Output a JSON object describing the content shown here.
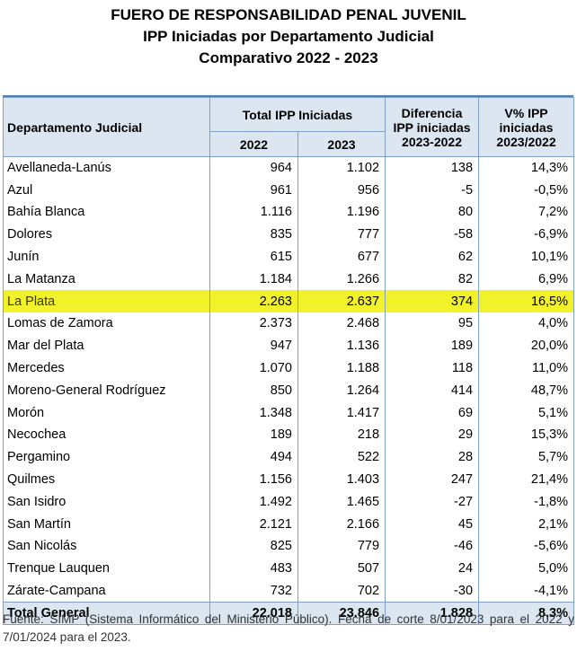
{
  "title": {
    "line1": "FUERO DE RESPONSABILIDAD PENAL JUVENIL",
    "line2": "IPP Iniciadas por Departamento Judicial",
    "line3": "Comparativo 2022 - 2023"
  },
  "table": {
    "headers": {
      "department": "Departamento Judicial",
      "total_group": "Total IPP Iniciadas",
      "year_2022": "2022",
      "year_2023": "2023",
      "difference": [
        "Diferencia",
        "IPP iniciadas",
        "2023-2022"
      ],
      "variation": [
        "V% IPP",
        "iniciadas",
        "2023/2022"
      ]
    },
    "rows": [
      {
        "dept": "Avellaneda-Lanús",
        "y2022": "964",
        "y2023": "1.102",
        "diff": "138",
        "var": "14,3%"
      },
      {
        "dept": "Azul",
        "y2022": "961",
        "y2023": "956",
        "diff": "-5",
        "var": "-0,5%"
      },
      {
        "dept": "Bahía Blanca",
        "y2022": "1.116",
        "y2023": "1.196",
        "diff": "80",
        "var": "7,2%"
      },
      {
        "dept": "Dolores",
        "y2022": "835",
        "y2023": "777",
        "diff": "-58",
        "var": "-6,9%"
      },
      {
        "dept": "Junín",
        "y2022": "615",
        "y2023": "677",
        "diff": "62",
        "var": "10,1%"
      },
      {
        "dept": "La Matanza",
        "y2022": "1.184",
        "y2023": "1.266",
        "diff": "82",
        "var": "6,9%"
      },
      {
        "dept": "La Plata",
        "y2022": "2.263",
        "y2023": "2.637",
        "diff": "374",
        "var": "16,5%",
        "highlight": true
      },
      {
        "dept": "Lomas de Zamora",
        "y2022": "2.373",
        "y2023": "2.468",
        "diff": "95",
        "var": "4,0%"
      },
      {
        "dept": "Mar del Plata",
        "y2022": "947",
        "y2023": "1.136",
        "diff": "189",
        "var": "20,0%"
      },
      {
        "dept": "Mercedes",
        "y2022": "1.070",
        "y2023": "1.188",
        "diff": "118",
        "var": "11,0%"
      },
      {
        "dept": "Moreno-General Rodríguez",
        "y2022": "850",
        "y2023": "1.264",
        "diff": "414",
        "var": "48,7%"
      },
      {
        "dept": "Morón",
        "y2022": "1.348",
        "y2023": "1.417",
        "diff": "69",
        "var": "5,1%"
      },
      {
        "dept": "Necochea",
        "y2022": "189",
        "y2023": "218",
        "diff": "29",
        "var": "15,3%"
      },
      {
        "dept": "Pergamino",
        "y2022": "494",
        "y2023": "522",
        "diff": "28",
        "var": "5,7%"
      },
      {
        "dept": "Quilmes",
        "y2022": "1.156",
        "y2023": "1.403",
        "diff": "247",
        "var": "21,4%"
      },
      {
        "dept": "San Isidro",
        "y2022": "1.492",
        "y2023": "1.465",
        "diff": "-27",
        "var": "-1,8%"
      },
      {
        "dept": "San Martín",
        "y2022": "2.121",
        "y2023": "2.166",
        "diff": "45",
        "var": "2,1%"
      },
      {
        "dept": "San Nicolás",
        "y2022": "825",
        "y2023": "779",
        "diff": "-46",
        "var": "-5,6%"
      },
      {
        "dept": "Trenque Lauquen",
        "y2022": "483",
        "y2023": "507",
        "diff": "24",
        "var": "5,0%"
      },
      {
        "dept": "Zárate-Campana",
        "y2022": "732",
        "y2023": "702",
        "diff": "-30",
        "var": "-4,1%"
      }
    ],
    "total": {
      "dept": "Total General",
      "y2022": "22.018",
      "y2023": "23.846",
      "diff": "1.828",
      "var": "8,3%"
    }
  },
  "colors": {
    "header_bg": "#dce6f1",
    "border": "#7f9fc9",
    "highlight": "#f2f22a"
  },
  "source": "Fuente: SIMP (Sistema Informático del Ministerio Público). Fecha de corte 8/01/2023 para el 2022 y 7/01/2024 para el 2023."
}
